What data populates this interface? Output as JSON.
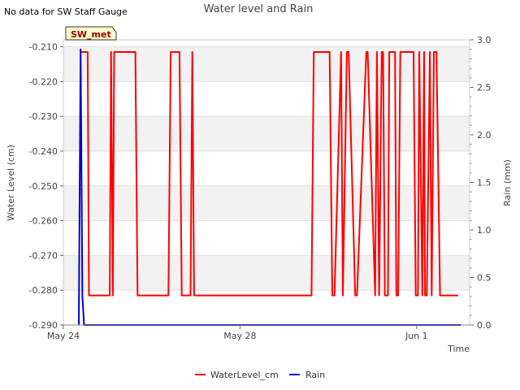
{
  "status_note": "No data for SW Staff Gauge",
  "chart_data": {
    "type": "line",
    "title": "Water level and Rain",
    "xlabel": "Time",
    "ylabel_left": "Water Level (cm)",
    "ylabel_right": "Rain (mm)",
    "station_tag": "SW_met",
    "x_tick_labels": [
      "May 24",
      "May 28",
      "Jun 1"
    ],
    "x_tick_days": [
      0,
      4,
      8
    ],
    "xlim_days": [
      0,
      9.2
    ],
    "ylim_left": [
      -0.29,
      -0.208
    ],
    "ylim_right": [
      0.0,
      3.0
    ],
    "y_left_ticks": [
      -0.21,
      -0.22,
      -0.23,
      -0.24,
      -0.25,
      -0.26,
      -0.27,
      -0.28,
      -0.29
    ],
    "y_left_tick_labels": [
      "-0.210",
      "-0.220",
      "-0.230",
      "-0.240",
      "-0.250",
      "-0.260",
      "-0.270",
      "-0.280",
      "-0.290"
    ],
    "y_right_ticks": [
      0.0,
      0.5,
      1.0,
      1.5,
      2.0,
      2.5,
      3.0
    ],
    "y_right_tick_labels": [
      "0.0",
      "0.5",
      "1.0",
      "1.5",
      "2.0",
      "2.5",
      "3.0"
    ],
    "grid": true,
    "alternating_bands": true,
    "legend_position": "bottom-center",
    "series": [
      {
        "name": "WaterLevel_cm",
        "axis": "left",
        "color": "#ff0000",
        "x_days": [
          0.38,
          0.55,
          0.58,
          1.05,
          1.08,
          1.12,
          1.15,
          1.21,
          1.63,
          1.68,
          2.38,
          2.43,
          2.63,
          2.68,
          2.88,
          2.92,
          2.96,
          3.0,
          5.62,
          5.67,
          6.03,
          6.09,
          6.14,
          6.29,
          6.33,
          6.42,
          6.46,
          6.61,
          6.65,
          6.86,
          6.89,
          7.06,
          7.1,
          7.15,
          7.21,
          7.24,
          7.28,
          7.35,
          7.38,
          7.51,
          7.54,
          7.58,
          7.63,
          7.93,
          7.98,
          8.03,
          8.06,
          8.13,
          8.17,
          8.19,
          8.23,
          8.3,
          8.34,
          8.39,
          8.45,
          8.53,
          8.57,
          8.82,
          8.87,
          8.94
        ],
        "y": [
          -0.2115,
          -0.2115,
          -0.2815,
          -0.2815,
          -0.2115,
          -0.2815,
          -0.2115,
          -0.2115,
          -0.2115,
          -0.2815,
          -0.2815,
          -0.2115,
          -0.2115,
          -0.2815,
          -0.2815,
          -0.2115,
          -0.2815,
          -0.2815,
          -0.2815,
          -0.2115,
          -0.2115,
          -0.2815,
          -0.2815,
          -0.2115,
          -0.2815,
          -0.2115,
          -0.2115,
          -0.2815,
          -0.2815,
          -0.2115,
          -0.2115,
          -0.2815,
          -0.2115,
          -0.2815,
          -0.2115,
          -0.2115,
          -0.2815,
          -0.2815,
          -0.2115,
          -0.2115,
          -0.2815,
          -0.2815,
          -0.2115,
          -0.2115,
          -0.2815,
          -0.2815,
          -0.2115,
          -0.2815,
          -0.2115,
          -0.2815,
          -0.2815,
          -0.2115,
          -0.2815,
          -0.2115,
          -0.2115,
          -0.2815,
          -0.2815,
          -0.2815,
          -0.2815,
          -0.2815
        ]
      },
      {
        "name": "Rain",
        "axis": "right",
        "color": "#0000cc",
        "x_days": [
          0.35,
          0.39,
          0.43,
          0.47,
          0.52,
          9.0
        ],
        "y": [
          0.0,
          2.9,
          0.3,
          0.0,
          0.0,
          0.0
        ]
      }
    ]
  }
}
